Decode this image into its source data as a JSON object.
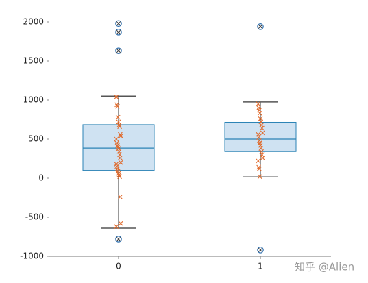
{
  "chart_data": {
    "type": "box",
    "categories": [
      "0",
      "1"
    ],
    "ylim": [
      -1000,
      2000
    ],
    "yticks": [
      -1000,
      -500,
      0,
      500,
      1000,
      1500,
      2000
    ],
    "box_color": "#cfe2f2",
    "edge_color": "#2b83b5",
    "point_color": "#e06a2c",
    "outlier_color": "#2f6fae",
    "boxes": [
      {
        "min": -640,
        "q1": 100,
        "median": 385,
        "q3": 685,
        "max": 1050,
        "outliers": [
          1980,
          1870,
          1630,
          -780
        ],
        "points": [
          1040,
          940,
          920,
          780,
          720,
          680,
          660,
          560,
          540,
          500,
          450,
          420,
          400,
          380,
          340,
          300,
          260,
          200,
          180,
          150,
          120,
          90,
          60,
          40,
          20,
          -240,
          -580,
          -620
        ]
      },
      {
        "min": 15,
        "q1": 340,
        "median": 500,
        "q3": 715,
        "max": 975,
        "outliers": [
          1940,
          -920
        ],
        "points": [
          950,
          900,
          870,
          830,
          760,
          720,
          680,
          640,
          580,
          560,
          520,
          480,
          450,
          420,
          380,
          340,
          300,
          260,
          220,
          140,
          120,
          20
        ]
      }
    ],
    "watermark": "知乎 @Alien"
  }
}
